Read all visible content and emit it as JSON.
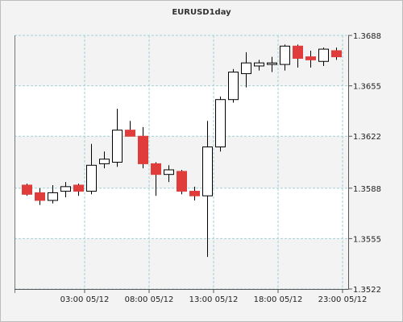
{
  "chart_data": {
    "type": "candlestick",
    "title": "EURUSD1day",
    "xlabel": "",
    "ylabel": "",
    "ylim": [
      1.3522,
      1.3688
    ],
    "y_ticks": [
      "1.3688",
      "1.3655",
      "1.3622",
      "1.3588",
      "1.3555",
      "1.3522"
    ],
    "x_ticks": [
      {
        "label": "03:00 05/12",
        "index": 4.5
      },
      {
        "label": "08:00 05/12",
        "index": 9.5
      },
      {
        "label": "13:00 05/12",
        "index": 14.5
      },
      {
        "label": "18:00 05/12",
        "index": 19.5
      },
      {
        "label": "23:00 05/12",
        "index": 24.5
      }
    ],
    "grid": true,
    "colors": {
      "up": "#ffffff",
      "down": "#e03c3c",
      "wick": "#000000",
      "grid": "#9fd1d8",
      "plot_bg": "#ffffff",
      "band": "#f3f3f3"
    },
    "candles": [
      {
        "open": 1.359,
        "high": 1.3591,
        "low": 1.3583,
        "close": 1.3584
      },
      {
        "open": 1.3585,
        "high": 1.3588,
        "low": 1.3577,
        "close": 1.358
      },
      {
        "open": 1.358,
        "high": 1.359,
        "low": 1.3578,
        "close": 1.3585
      },
      {
        "open": 1.3586,
        "high": 1.3592,
        "low": 1.3582,
        "close": 1.3589
      },
      {
        "open": 1.359,
        "high": 1.3591,
        "low": 1.3583,
        "close": 1.3586
      },
      {
        "open": 1.3586,
        "high": 1.3617,
        "low": 1.3584,
        "close": 1.3603
      },
      {
        "open": 1.3604,
        "high": 1.3612,
        "low": 1.3601,
        "close": 1.3607
      },
      {
        "open": 1.3605,
        "high": 1.364,
        "low": 1.3602,
        "close": 1.3626
      },
      {
        "open": 1.3626,
        "high": 1.3632,
        "low": 1.3622,
        "close": 1.3622
      },
      {
        "open": 1.3622,
        "high": 1.3628,
        "low": 1.3601,
        "close": 1.3604
      },
      {
        "open": 1.3604,
        "high": 1.3605,
        "low": 1.3583,
        "close": 1.3597
      },
      {
        "open": 1.3597,
        "high": 1.3603,
        "low": 1.3592,
        "close": 1.36
      },
      {
        "open": 1.3599,
        "high": 1.36,
        "low": 1.3584,
        "close": 1.3586
      },
      {
        "open": 1.3586,
        "high": 1.3589,
        "low": 1.358,
        "close": 1.3583
      },
      {
        "open": 1.3583,
        "high": 1.3632,
        "low": 1.3543,
        "close": 1.3615
      },
      {
        "open": 1.3615,
        "high": 1.3648,
        "low": 1.3612,
        "close": 1.3646
      },
      {
        "open": 1.3646,
        "high": 1.3666,
        "low": 1.3644,
        "close": 1.3664
      },
      {
        "open": 1.3663,
        "high": 1.3677,
        "low": 1.3654,
        "close": 1.367
      },
      {
        "open": 1.3668,
        "high": 1.3672,
        "low": 1.3665,
        "close": 1.367
      },
      {
        "open": 1.3669,
        "high": 1.3674,
        "low": 1.3664,
        "close": 1.367
      },
      {
        "open": 1.3669,
        "high": 1.3682,
        "low": 1.3665,
        "close": 1.3681
      },
      {
        "open": 1.3681,
        "high": 1.3682,
        "low": 1.3667,
        "close": 1.3673
      },
      {
        "open": 1.3674,
        "high": 1.3678,
        "low": 1.3667,
        "close": 1.3672
      },
      {
        "open": 1.3671,
        "high": 1.368,
        "low": 1.3668,
        "close": 1.3679
      },
      {
        "open": 1.3678,
        "high": 1.368,
        "low": 1.3672,
        "close": 1.3674
      }
    ]
  }
}
